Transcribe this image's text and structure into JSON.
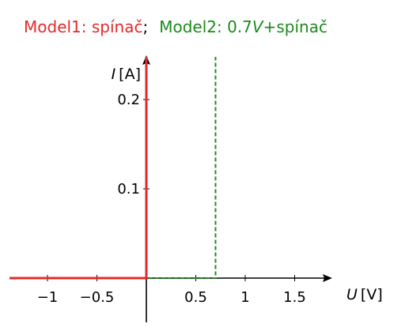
{
  "chart_data": {
    "type": "line",
    "title": {
      "part1": "Model1: spínač",
      "separator": ";",
      "part2_prefix": "Model2: 0.7",
      "part2_var": "V",
      "part2_suffix": "+spínač"
    },
    "xlabel": {
      "var": "U",
      "unit": "[V]"
    },
    "ylabel": {
      "var": "I",
      "unit": "[A]"
    },
    "xlim": [
      -1.4,
      1.8
    ],
    "ylim": [
      -0.05,
      0.25
    ],
    "xticks": [
      {
        "value": -1,
        "label": "−1"
      },
      {
        "value": -0.5,
        "label": "−0.5"
      },
      {
        "value": 0.5,
        "label": "0.5"
      },
      {
        "value": 1,
        "label": "1"
      },
      {
        "value": 1.5,
        "label": "1.5"
      }
    ],
    "yticks": [
      {
        "value": 0.1,
        "label": "0.1"
      },
      {
        "value": 0.2,
        "label": "0.2"
      }
    ],
    "series": [
      {
        "color": "#e32b2b",
        "style": "solid",
        "points": [
          [
            -1.4,
            0
          ],
          [
            0,
            0
          ],
          [
            0,
            0.25
          ]
        ]
      },
      {
        "color": "#1c8a1c",
        "style": "dashed",
        "points": [
          [
            -1.4,
            0
          ],
          [
            0.7,
            0
          ],
          [
            0.7,
            0.25
          ]
        ]
      }
    ],
    "grid": false,
    "legend": "none"
  }
}
